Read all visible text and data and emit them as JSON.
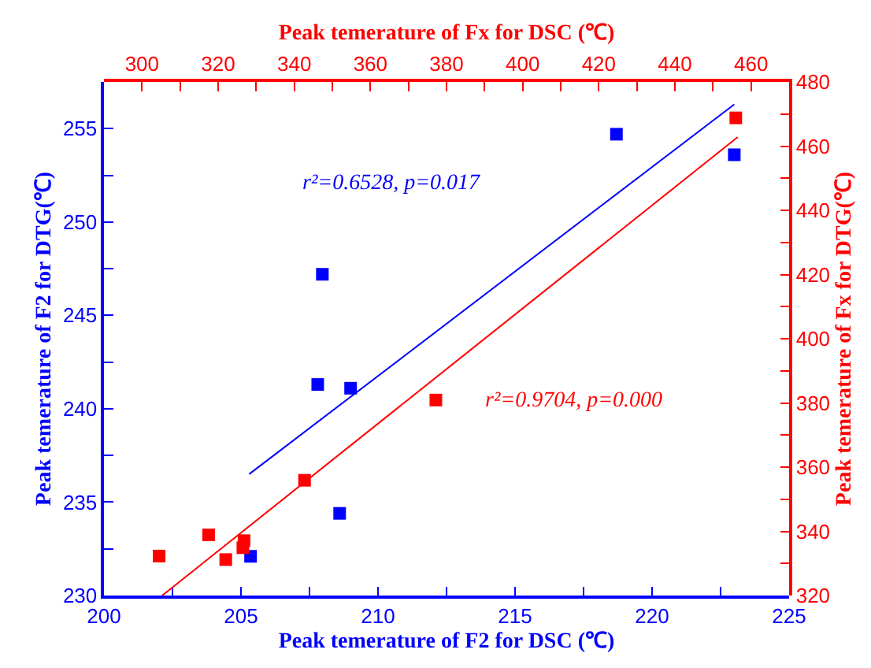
{
  "chart_data": [
    {
      "type": "scatter",
      "xlabel": "Peak temerature of F2 for DSC (℃)",
      "ylabel": "Peak temerature of F2 for DTG(℃)",
      "xlim": [
        200,
        225
      ],
      "xticks": [
        200,
        {
          "value": 202.5,
          "label": null
        },
        205,
        {
          "value": 207.5,
          "label": null
        },
        210,
        {
          "value": 212.5,
          "label": null
        },
        215,
        {
          "value": 217.5,
          "label": null
        },
        220,
        {
          "value": 222.5,
          "label": null
        },
        225
      ],
      "ylim": [
        230,
        257.5
      ],
      "yticks": [
        230,
        {
          "value": 232.5,
          "label": null
        },
        235,
        {
          "value": 237.5,
          "label": null
        },
        240,
        {
          "value": 242.5,
          "label": null
        },
        245,
        {
          "value": 247.5,
          "label": null
        },
        250,
        {
          "value": 252.5,
          "label": null
        },
        255
      ],
      "marker": "square",
      "grid": false,
      "series": [
        {
          "color": "#0000ff",
          "x": [
            205.35,
            207.8,
            207.97,
            208.6,
            209.0,
            218.7,
            223.0
          ],
          "values": [
            232.1,
            241.3,
            247.2,
            234.4,
            241.1,
            254.7,
            253.6
          ]
        },
        {
          "type": "line",
          "marker": "none",
          "color": "#0000ff",
          "x": [
            205.3,
            223.0
          ],
          "values": [
            236.5,
            256.3
          ]
        }
      ],
      "annotations": [
        "r²=0.6528, p=0.017"
      ]
    },
    {
      "type": "scatter",
      "xlabel": "Peak temerature of Fx for DSC (℃)",
      "ylabel": "Peak temerature of Fx for DTG(℃)",
      "xlim": [
        290,
        470
      ],
      "xticks": [
        300,
        {
          "value": 310,
          "label": null
        },
        320,
        {
          "value": 330,
          "label": null
        },
        340,
        {
          "value": 350,
          "label": null
        },
        360,
        {
          "value": 370,
          "label": null
        },
        380,
        {
          "value": 390,
          "label": null
        },
        400,
        {
          "value": 410,
          "label": null
        },
        420,
        {
          "value": 430,
          "label": null
        },
        440,
        {
          "value": 450,
          "label": null
        },
        460
      ],
      "ylim": [
        320,
        480
      ],
      "yticks": [
        320,
        {
          "value": 330,
          "label": null
        },
        340,
        {
          "value": 350,
          "label": null
        },
        360,
        {
          "value": 370,
          "label": null
        },
        380,
        {
          "value": 390,
          "label": null
        },
        400,
        {
          "value": 410,
          "label": null
        },
        420,
        {
          "value": 430,
          "label": null
        },
        440,
        {
          "value": 450,
          "label": null
        },
        460,
        {
          "value": 470,
          "label": null
        },
        480
      ],
      "marker": "square",
      "grid": false,
      "series": [
        {
          "color": "#ff0000",
          "x": [
            304.5,
            317.5,
            322.0,
            326.5,
            326.8,
            342.7,
            377.2,
            456.0
          ],
          "values": [
            332.3,
            338.9,
            331.2,
            334.9,
            337.1,
            355.9,
            380.9,
            468.8
          ]
        },
        {
          "type": "line",
          "marker": "none",
          "color": "#ff0000",
          "x": [
            305.3,
            456.5
          ],
          "values": [
            320,
            462.8
          ]
        }
      ],
      "annotations": [
        "r²=0.9704, p=0.000"
      ]
    }
  ]
}
